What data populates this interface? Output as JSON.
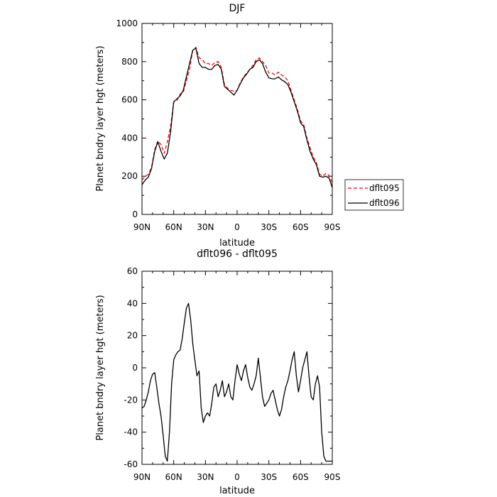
{
  "chart_data": [
    {
      "type": "line",
      "title": "DJF",
      "xlabel": "latitude",
      "ylabel": "Planet bndry layer hgt (meters)",
      "x_tick_labels": [
        "90N",
        "60N",
        "30N",
        "0",
        "30S",
        "60S",
        "90S"
      ],
      "x_tick_values": [
        90,
        60,
        30,
        0,
        -30,
        -60,
        -90
      ],
      "xlim": [
        90,
        -90
      ],
      "ylim": [
        0,
        1000
      ],
      "y_ticks": [
        0,
        200,
        400,
        600,
        800,
        1000
      ],
      "grid": false,
      "legend": {
        "placement": "right",
        "entries": [
          {
            "label": "dflt095",
            "color": "#ff0000",
            "style": "dashed"
          },
          {
            "label": "dflt096",
            "color": "#000000",
            "style": "solid"
          }
        ]
      },
      "series": [
        {
          "name": "dflt095",
          "color": "#ff0000",
          "dash": "dashed",
          "x": [
            90,
            87,
            84,
            81,
            78,
            75,
            72,
            69,
            66,
            63,
            60,
            57,
            54,
            51,
            48,
            45,
            42,
            39,
            36,
            33,
            30,
            27,
            24,
            21,
            18,
            15,
            12,
            9,
            6,
            3,
            0,
            -3,
            -6,
            -9,
            -12,
            -15,
            -18,
            -21,
            -24,
            -27,
            -30,
            -33,
            -36,
            -39,
            -42,
            -45,
            -48,
            -51,
            -54,
            -57,
            -60,
            -63,
            -66,
            -69,
            -72,
            -75,
            -78,
            -81,
            -84,
            -87,
            -90
          ],
          "y": [
            180,
            200,
            210,
            245,
            340,
            385,
            365,
            320,
            380,
            460,
            590,
            595,
            630,
            640,
            700,
            760,
            860,
            875,
            820,
            810,
            790,
            790,
            780,
            795,
            800,
            770,
            680,
            660,
            650,
            645,
            650,
            690,
            720,
            740,
            760,
            780,
            810,
            820,
            800,
            780,
            740,
            740,
            730,
            745,
            730,
            720,
            700,
            650,
            600,
            550,
            490,
            470,
            400,
            350,
            300,
            270,
            210,
            200,
            215,
            205,
            165
          ]
        },
        {
          "name": "dflt096",
          "color": "#000000",
          "dash": "solid",
          "x": [
            90,
            87,
            84,
            81,
            78,
            75,
            72,
            69,
            66,
            63,
            60,
            57,
            54,
            51,
            48,
            45,
            42,
            39,
            36,
            33,
            30,
            27,
            24,
            21,
            18,
            15,
            12,
            9,
            6,
            3,
            0,
            -3,
            -6,
            -9,
            -12,
            -15,
            -18,
            -21,
            -24,
            -27,
            -30,
            -33,
            -36,
            -39,
            -42,
            -45,
            -48,
            -51,
            -54,
            -57,
            -60,
            -63,
            -66,
            -69,
            -72,
            -75,
            -78,
            -81,
            -84,
            -87,
            -90
          ],
          "y": [
            155,
            180,
            195,
            240,
            330,
            380,
            330,
            290,
            320,
            430,
            590,
            605,
            620,
            650,
            720,
            790,
            860,
            870,
            790,
            770,
            770,
            760,
            760,
            780,
            785,
            760,
            670,
            655,
            640,
            625,
            650,
            685,
            715,
            735,
            760,
            770,
            800,
            810,
            790,
            745,
            715,
            710,
            710,
            720,
            705,
            695,
            680,
            640,
            590,
            540,
            480,
            460,
            390,
            330,
            290,
            260,
            200,
            195,
            200,
            190,
            140
          ]
        }
      ]
    },
    {
      "type": "line",
      "title": "dflt096 - dflt095",
      "xlabel": "latitude",
      "ylabel": "Planet bndry layer hgt (meters)",
      "x_tick_labels": [
        "90N",
        "60N",
        "30N",
        "0",
        "30S",
        "60S",
        "90S"
      ],
      "x_tick_values": [
        90,
        60,
        30,
        0,
        -30,
        -60,
        -90
      ],
      "xlim": [
        90,
        -90
      ],
      "ylim": [
        -60,
        60
      ],
      "y_ticks": [
        -60,
        -40,
        -20,
        0,
        20,
        40,
        60
      ],
      "grid": false,
      "series": [
        {
          "color": "#000000",
          "dash": "solid",
          "x": [
            90,
            88,
            86,
            84,
            82,
            80,
            78,
            76,
            74,
            72,
            70,
            68,
            66,
            64,
            62,
            60,
            58,
            56,
            54,
            52,
            50,
            48,
            46,
            44,
            42,
            40,
            38,
            36,
            34,
            32,
            30,
            28,
            26,
            24,
            22,
            20,
            18,
            16,
            14,
            12,
            10,
            8,
            6,
            4,
            2,
            0,
            -2,
            -4,
            -6,
            -8,
            -10,
            -12,
            -14,
            -16,
            -18,
            -20,
            -22,
            -24,
            -26,
            -28,
            -30,
            -32,
            -34,
            -36,
            -38,
            -40,
            -42,
            -44,
            -46,
            -48,
            -50,
            -52,
            -54,
            -56,
            -58,
            -60,
            -62,
            -64,
            -66,
            -68,
            -70,
            -72,
            -74,
            -76,
            -78,
            -80,
            -82,
            -84,
            -86,
            -88,
            -90
          ],
          "y": [
            -25,
            -24,
            -20,
            -15,
            -8,
            -4,
            -3,
            -12,
            -22,
            -30,
            -42,
            -55,
            -58,
            -40,
            -10,
            5,
            8,
            10,
            11,
            18,
            28,
            37,
            40,
            30,
            15,
            5,
            -5,
            -2,
            -25,
            -34,
            -30,
            -28,
            -30,
            -22,
            -12,
            -10,
            -18,
            -14,
            -8,
            -18,
            -15,
            -10,
            -18,
            -20,
            -8,
            2,
            -4,
            -8,
            -2,
            2,
            -6,
            -12,
            -14,
            -10,
            -5,
            6,
            -6,
            -18,
            -24,
            -22,
            -20,
            -16,
            -14,
            -20,
            -26,
            -30,
            -26,
            -18,
            -12,
            -8,
            -2,
            5,
            10,
            -5,
            -15,
            -8,
            0,
            5,
            10,
            -5,
            -18,
            -20,
            -10,
            -5,
            -12,
            -40,
            -55,
            -58,
            -58,
            -58,
            -58
          ]
        }
      ]
    }
  ]
}
